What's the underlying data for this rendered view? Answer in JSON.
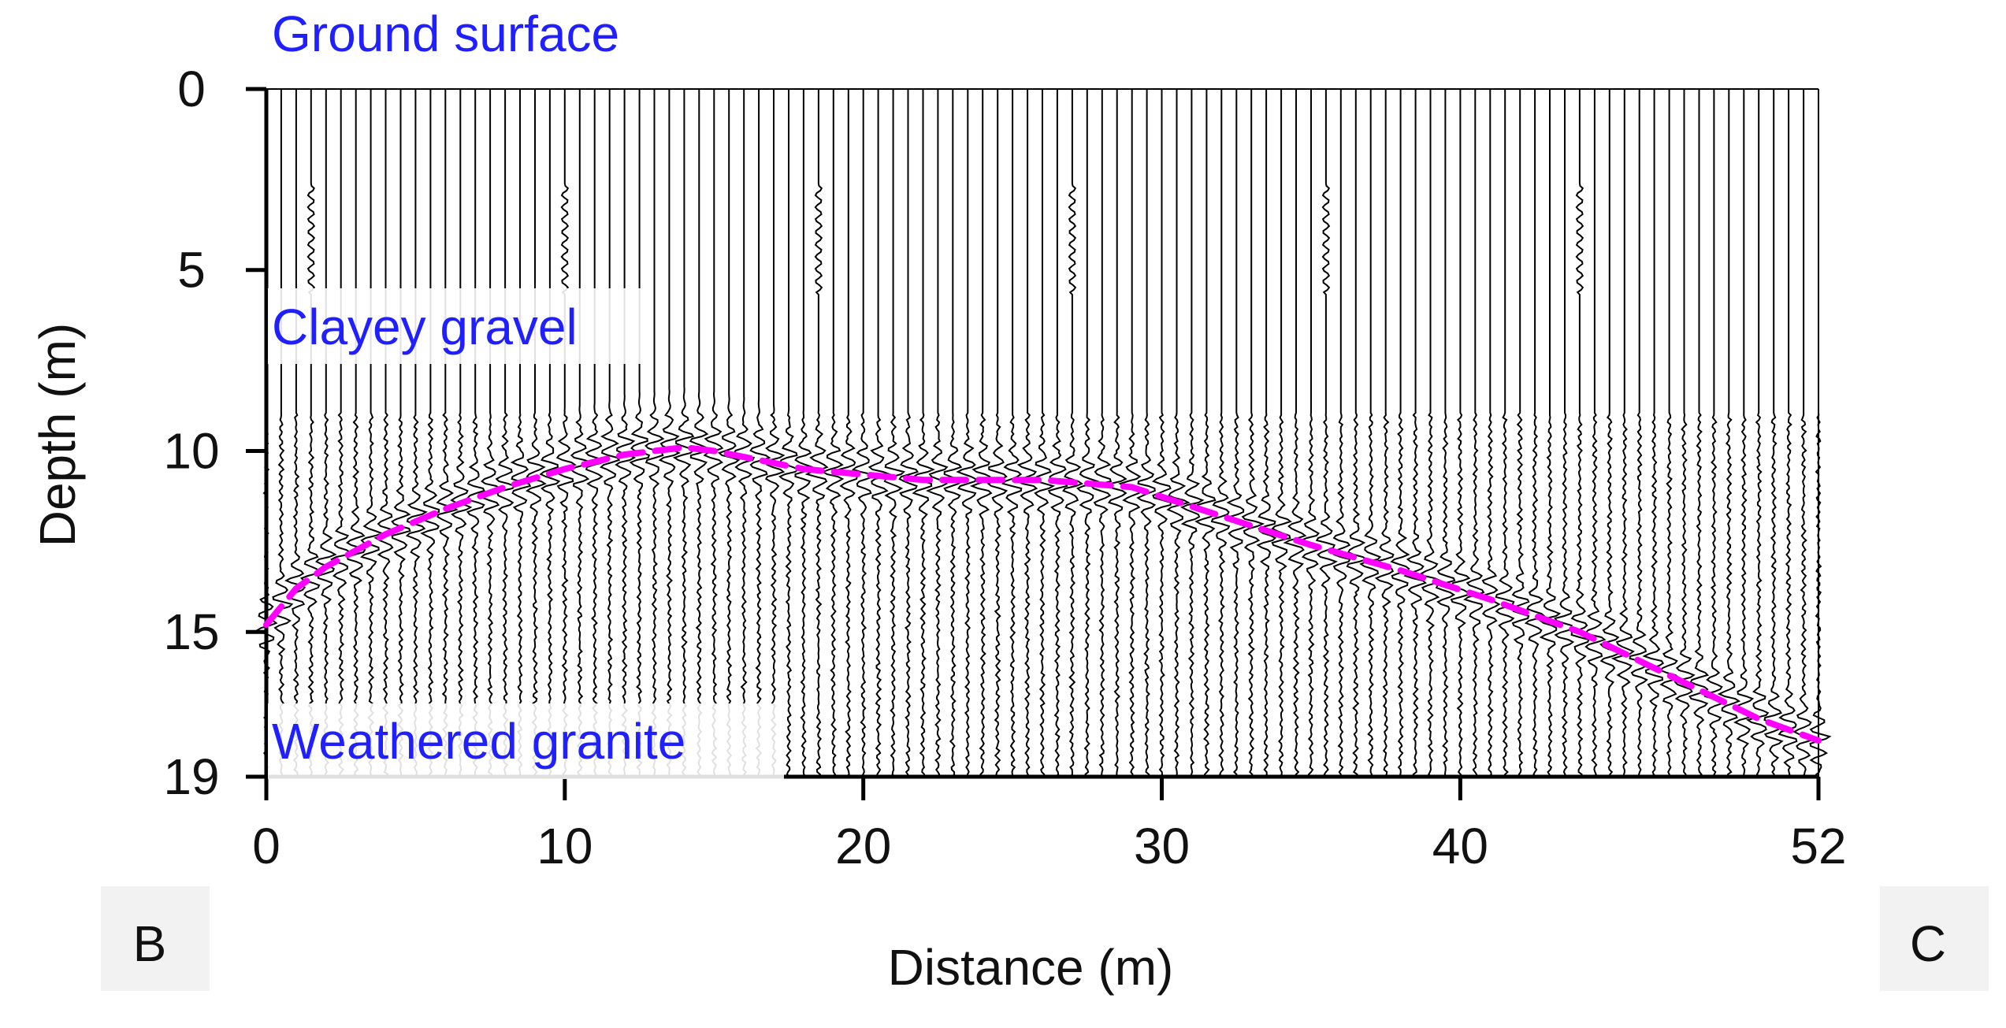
{
  "chart_data": {
    "type": "line",
    "title": "",
    "xlabel": "Distance (m)",
    "ylabel": "Depth (m)",
    "xlim": [
      0,
      52
    ],
    "ylim": [
      19,
      0
    ],
    "x_ticks": [
      0,
      10,
      20,
      30,
      40,
      52
    ],
    "y_ticks": [
      0,
      5,
      10,
      15,
      19
    ],
    "grid": false,
    "background": "seismic wiggle traces (about 105 vertical traces)",
    "series": [
      {
        "name": "Interface (clayey gravel / weathered granite)",
        "style": "dashed",
        "color": "#ff00ff",
        "x": [
          0,
          1,
          2,
          4,
          6,
          8,
          10,
          12,
          14,
          15,
          18,
          22,
          26,
          29,
          32,
          35,
          38,
          41,
          44,
          47,
          50,
          52
        ],
        "y": [
          14.8,
          13.8,
          13.2,
          12.3,
          11.6,
          11.0,
          10.5,
          10.1,
          9.9,
          10.0,
          10.5,
          10.8,
          10.8,
          11.0,
          11.8,
          12.6,
          13.3,
          14.1,
          15.0,
          16.2,
          17.4,
          18.0
        ]
      }
    ],
    "annotations": [
      {
        "text": "Ground surface",
        "color": "#1f1fff"
      },
      {
        "text": "Clayey gravel",
        "color": "#1f1fff"
      },
      {
        "text": "Weathered granite",
        "color": "#1f1fff"
      }
    ],
    "panel_labels": [
      "B",
      "C"
    ]
  },
  "colors": {
    "annotation": "#1f1fff",
    "interface": "#ff00ff",
    "trace": "#000000",
    "panel_label_bg": "#f2f2f2"
  }
}
